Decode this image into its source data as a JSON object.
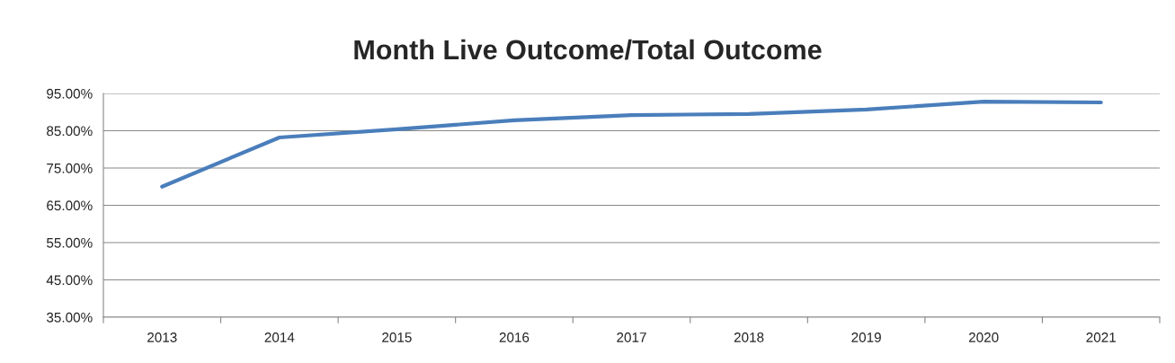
{
  "chart_data": {
    "type": "line",
    "title": "Month Live Outcome/Total Outcome",
    "categories": [
      "2013",
      "2014",
      "2015",
      "2016",
      "2017",
      "2018",
      "2019",
      "2020",
      "2021"
    ],
    "series": [
      {
        "color": "#4a7ebb",
        "values": [
          70.0,
          83.2,
          85.4,
          87.8,
          89.2,
          89.5,
          90.7,
          92.8,
          92.6
        ]
      }
    ],
    "ylim": [
      35,
      95
    ],
    "yticks": [
      {
        "value": 35,
        "label": "35.00%"
      },
      {
        "value": 45,
        "label": "45.00%"
      },
      {
        "value": 55,
        "label": "55.00%"
      },
      {
        "value": 65,
        "label": "65.00%"
      },
      {
        "value": 75,
        "label": "75.00%"
      },
      {
        "value": 85,
        "label": "85.00%"
      },
      {
        "value": 95,
        "label": "95.00%"
      }
    ],
    "grid": "y",
    "legend": false,
    "marker": "none",
    "line_style": "solid"
  }
}
